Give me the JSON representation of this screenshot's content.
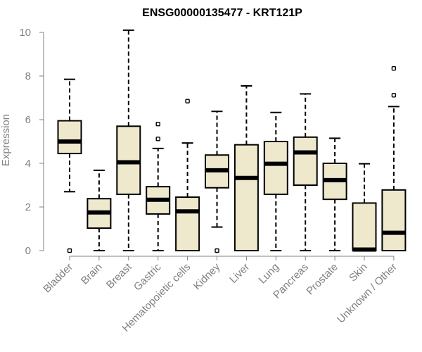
{
  "chart_data": {
    "type": "boxplot",
    "title": "ENSG00000135477 - KRT121P",
    "ylabel": "Expression",
    "xlabel": "",
    "ylim": [
      0,
      10
    ],
    "y_ticks": [
      0,
      2,
      4,
      6,
      8,
      10
    ],
    "grid": false,
    "legend": "none",
    "box_fill": "#EEE8CD",
    "line_color": "#000000",
    "axis_color": "#808080",
    "categories": [
      {
        "label": "Bladder",
        "q1": 4.45,
        "median": 5.0,
        "q3": 5.95,
        "whisker_low": 2.7,
        "whisker_high": 7.85,
        "outliers": [
          0.0
        ]
      },
      {
        "label": "Brain",
        "q1": 1.03,
        "median": 1.75,
        "q3": 2.38,
        "whisker_low": 0.0,
        "whisker_high": 3.68,
        "outliers": []
      },
      {
        "label": "Breast",
        "q1": 2.58,
        "median": 4.05,
        "q3": 5.7,
        "whisker_low": 0.0,
        "whisker_high": 10.1,
        "outliers": []
      },
      {
        "label": "Gastric",
        "q1": 1.68,
        "median": 2.33,
        "q3": 2.93,
        "whisker_low": 0.0,
        "whisker_high": 4.68,
        "outliers": [
          5.12,
          5.8
        ]
      },
      {
        "label": "Hematopoietic cells",
        "q1": 0.0,
        "median": 1.8,
        "q3": 2.45,
        "whisker_low": 0.0,
        "whisker_high": 4.93,
        "outliers": [
          6.85
        ]
      },
      {
        "label": "Kidney",
        "q1": 2.88,
        "median": 3.68,
        "q3": 4.38,
        "whisker_low": 1.08,
        "whisker_high": 6.38,
        "outliers": [
          0.0
        ]
      },
      {
        "label": "Liver",
        "q1": 0.0,
        "median": 3.33,
        "q3": 4.85,
        "whisker_low": 0.0,
        "whisker_high": 7.55,
        "outliers": []
      },
      {
        "label": "Lung",
        "q1": 2.58,
        "median": 3.98,
        "q3": 5.0,
        "whisker_low": 0.0,
        "whisker_high": 6.33,
        "outliers": []
      },
      {
        "label": "Pancreas",
        "q1": 3.0,
        "median": 4.5,
        "q3": 5.2,
        "whisker_low": 0.0,
        "whisker_high": 7.18,
        "outliers": []
      },
      {
        "label": "Prostate",
        "q1": 2.35,
        "median": 3.23,
        "q3": 4.0,
        "whisker_low": 0.0,
        "whisker_high": 5.15,
        "outliers": []
      },
      {
        "label": "Skin",
        "q1": 0.0,
        "median": 0.05,
        "q3": 2.18,
        "whisker_low": 0.0,
        "whisker_high": 3.98,
        "outliers": []
      },
      {
        "label": "Unknown / Other",
        "q1": 0.0,
        "median": 0.82,
        "q3": 2.78,
        "whisker_low": 0.0,
        "whisker_high": 6.6,
        "outliers": [
          7.12,
          8.35
        ]
      }
    ]
  }
}
